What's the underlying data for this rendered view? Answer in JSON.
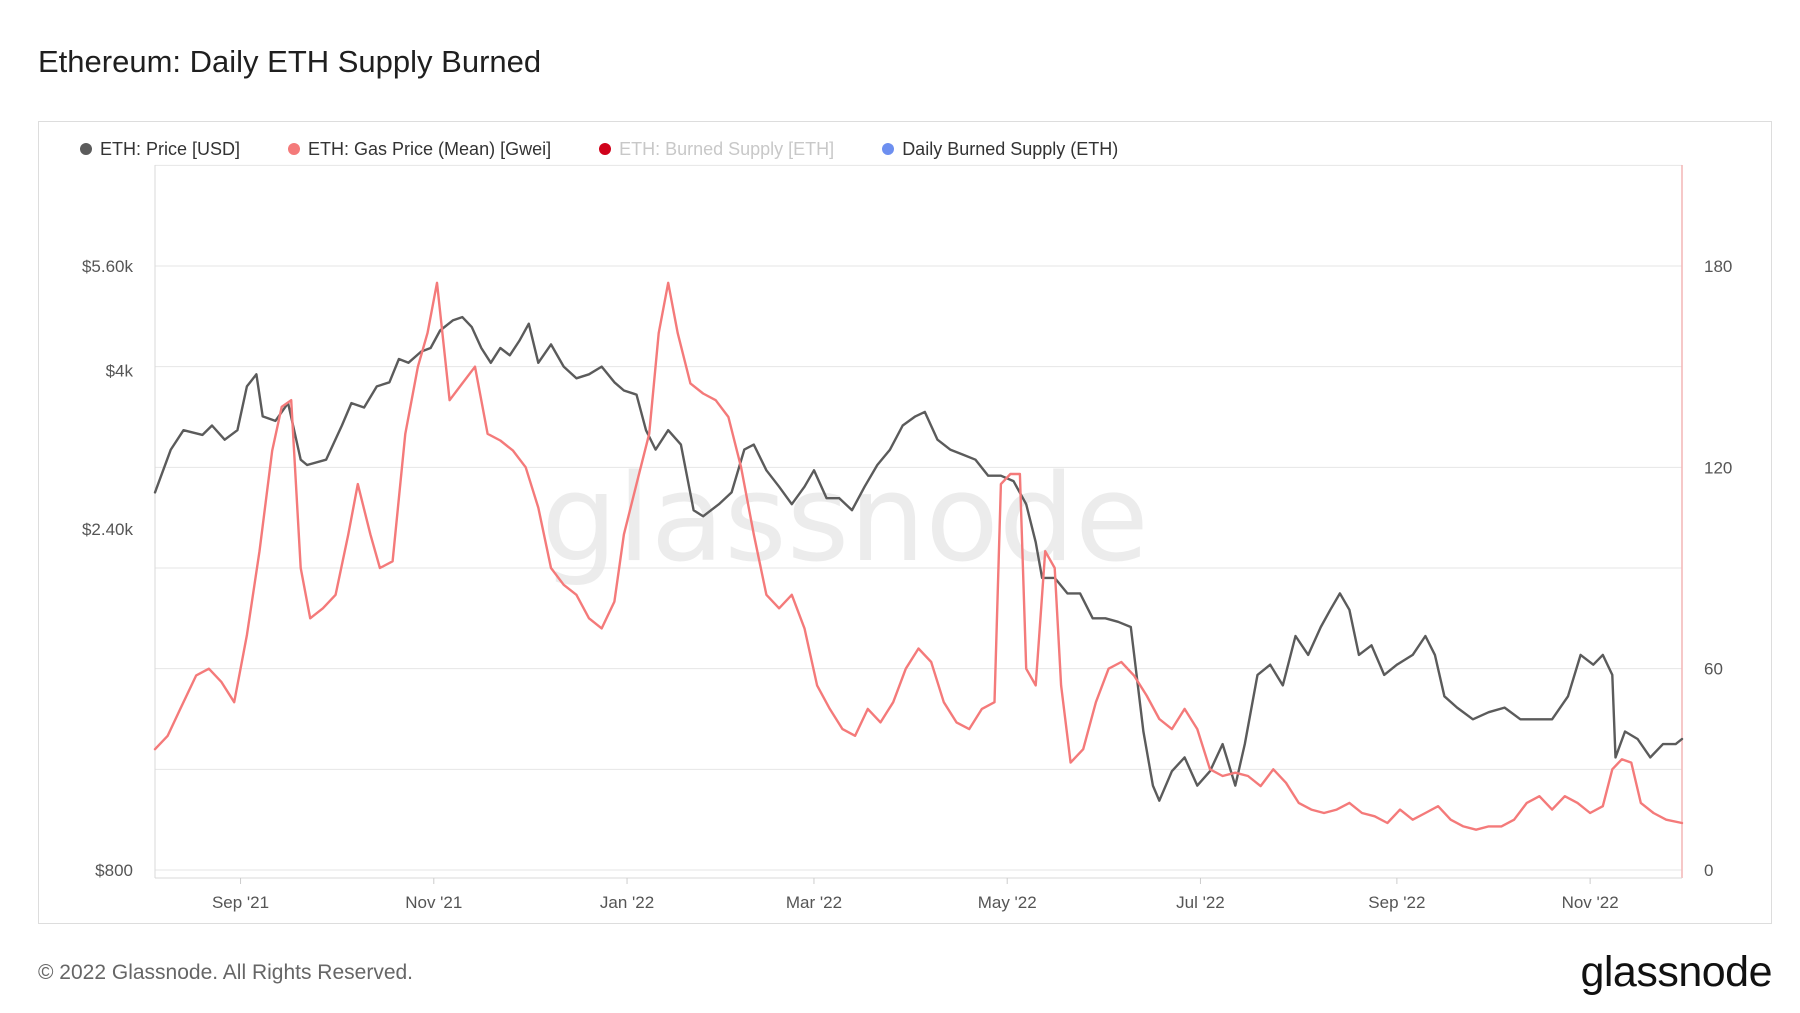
{
  "page": {
    "title": "Ethereum: Daily ETH Supply Burned",
    "footer_copyright": "© 2022 Glassnode. All Rights Reserved.",
    "footer_brand": "glassnode",
    "watermark": "glassnode"
  },
  "chart_data": {
    "type": "line",
    "title": "Ethereum: Daily ETH Supply Burned",
    "x_range": [
      "2021-08-05",
      "2022-11-30"
    ],
    "x_ticks": [
      {
        "date": "2021-09-01",
        "label": "Sep '21"
      },
      {
        "date": "2021-11-01",
        "label": "Nov '21"
      },
      {
        "date": "2022-01-01",
        "label": "Jan '22"
      },
      {
        "date": "2022-03-01",
        "label": "Mar '22"
      },
      {
        "date": "2022-05-01",
        "label": "May '22"
      },
      {
        "date": "2022-07-01",
        "label": "Jul '22"
      },
      {
        "date": "2022-09-01",
        "label": "Sep '22"
      },
      {
        "date": "2022-11-01",
        "label": "Nov '22"
      }
    ],
    "y_left": {
      "scale": "log",
      "range": [
        800,
        8000
      ],
      "ticks": [
        {
          "value": 800,
          "label": "$800"
        },
        {
          "value": 2400,
          "label": "$2.40k"
        },
        {
          "value": 4000,
          "label": "$4k"
        },
        {
          "value": 5600,
          "label": "$5.60k"
        }
      ]
    },
    "y_right": {
      "scale": "linear",
      "range": [
        0,
        210
      ],
      "ticks": [
        {
          "value": 0,
          "label": "0"
        },
        {
          "value": 60,
          "label": "60"
        },
        {
          "value": 120,
          "label": "120"
        },
        {
          "value": 180,
          "label": "180"
        }
      ]
    },
    "grid": true,
    "legend_position": "top-left",
    "series": [
      {
        "name": "ETH: Price [USD]",
        "color": "#5b5b5b",
        "axis": "left",
        "visible": true,
        "points": [
          [
            "2021-08-05",
            2700
          ],
          [
            "2021-08-10",
            3100
          ],
          [
            "2021-08-14",
            3300
          ],
          [
            "2021-08-20",
            3250
          ],
          [
            "2021-08-23",
            3350
          ],
          [
            "2021-08-27",
            3200
          ],
          [
            "2021-08-31",
            3300
          ],
          [
            "2021-09-03",
            3800
          ],
          [
            "2021-09-06",
            3950
          ],
          [
            "2021-09-08",
            3450
          ],
          [
            "2021-09-12",
            3400
          ],
          [
            "2021-09-16",
            3600
          ],
          [
            "2021-09-20",
            3000
          ],
          [
            "2021-09-22",
            2950
          ],
          [
            "2021-09-28",
            3000
          ],
          [
            "2021-10-03",
            3350
          ],
          [
            "2021-10-06",
            3600
          ],
          [
            "2021-10-10",
            3550
          ],
          [
            "2021-10-14",
            3800
          ],
          [
            "2021-10-18",
            3850
          ],
          [
            "2021-10-21",
            4150
          ],
          [
            "2021-10-24",
            4100
          ],
          [
            "2021-10-28",
            4250
          ],
          [
            "2021-10-31",
            4300
          ],
          [
            "2021-11-03",
            4550
          ],
          [
            "2021-11-07",
            4700
          ],
          [
            "2021-11-10",
            4750
          ],
          [
            "2021-11-13",
            4600
          ],
          [
            "2021-11-16",
            4300
          ],
          [
            "2021-11-19",
            4100
          ],
          [
            "2021-11-22",
            4300
          ],
          [
            "2021-11-25",
            4200
          ],
          [
            "2021-11-28",
            4400
          ],
          [
            "2021-12-01",
            4650
          ],
          [
            "2021-12-04",
            4100
          ],
          [
            "2021-12-08",
            4350
          ],
          [
            "2021-12-12",
            4050
          ],
          [
            "2021-12-16",
            3900
          ],
          [
            "2021-12-20",
            3950
          ],
          [
            "2021-12-24",
            4050
          ],
          [
            "2021-12-28",
            3850
          ],
          [
            "2021-12-31",
            3750
          ],
          [
            "2022-01-04",
            3700
          ],
          [
            "2022-01-07",
            3300
          ],
          [
            "2022-01-10",
            3100
          ],
          [
            "2022-01-14",
            3300
          ],
          [
            "2022-01-18",
            3150
          ],
          [
            "2022-01-22",
            2550
          ],
          [
            "2022-01-25",
            2500
          ],
          [
            "2022-01-30",
            2600
          ],
          [
            "2022-02-03",
            2700
          ],
          [
            "2022-02-07",
            3100
          ],
          [
            "2022-02-10",
            3150
          ],
          [
            "2022-02-14",
            2900
          ],
          [
            "2022-02-18",
            2750
          ],
          [
            "2022-02-22",
            2600
          ],
          [
            "2022-02-26",
            2750
          ],
          [
            "2022-03-01",
            2900
          ],
          [
            "2022-03-05",
            2650
          ],
          [
            "2022-03-09",
            2650
          ],
          [
            "2022-03-13",
            2550
          ],
          [
            "2022-03-17",
            2750
          ],
          [
            "2022-03-21",
            2950
          ],
          [
            "2022-03-25",
            3100
          ],
          [
            "2022-03-29",
            3350
          ],
          [
            "2022-04-02",
            3450
          ],
          [
            "2022-04-05",
            3500
          ],
          [
            "2022-04-09",
            3200
          ],
          [
            "2022-04-13",
            3100
          ],
          [
            "2022-04-17",
            3050
          ],
          [
            "2022-04-21",
            3000
          ],
          [
            "2022-04-25",
            2850
          ],
          [
            "2022-04-29",
            2850
          ],
          [
            "2022-05-03",
            2800
          ],
          [
            "2022-05-07",
            2600
          ],
          [
            "2022-05-10",
            2300
          ],
          [
            "2022-05-12",
            2050
          ],
          [
            "2022-05-16",
            2050
          ],
          [
            "2022-05-20",
            1950
          ],
          [
            "2022-05-24",
            1950
          ],
          [
            "2022-05-28",
            1800
          ],
          [
            "2022-06-01",
            1800
          ],
          [
            "2022-06-05",
            1780
          ],
          [
            "2022-06-09",
            1750
          ],
          [
            "2022-06-13",
            1250
          ],
          [
            "2022-06-16",
            1050
          ],
          [
            "2022-06-18",
            1000
          ],
          [
            "2022-06-22",
            1100
          ],
          [
            "2022-06-26",
            1150
          ],
          [
            "2022-06-30",
            1050
          ],
          [
            "2022-07-04",
            1100
          ],
          [
            "2022-07-08",
            1200
          ],
          [
            "2022-07-12",
            1050
          ],
          [
            "2022-07-15",
            1200
          ],
          [
            "2022-07-19",
            1500
          ],
          [
            "2022-07-23",
            1550
          ],
          [
            "2022-07-27",
            1450
          ],
          [
            "2022-07-31",
            1700
          ],
          [
            "2022-08-04",
            1600
          ],
          [
            "2022-08-08",
            1750
          ],
          [
            "2022-08-11",
            1850
          ],
          [
            "2022-08-14",
            1950
          ],
          [
            "2022-08-17",
            1850
          ],
          [
            "2022-08-20",
            1600
          ],
          [
            "2022-08-24",
            1650
          ],
          [
            "2022-08-28",
            1500
          ],
          [
            "2022-09-01",
            1550
          ],
          [
            "2022-09-06",
            1600
          ],
          [
            "2022-09-10",
            1700
          ],
          [
            "2022-09-13",
            1600
          ],
          [
            "2022-09-16",
            1400
          ],
          [
            "2022-09-20",
            1350
          ],
          [
            "2022-09-25",
            1300
          ],
          [
            "2022-09-30",
            1330
          ],
          [
            "2022-10-05",
            1350
          ],
          [
            "2022-10-10",
            1300
          ],
          [
            "2022-10-15",
            1300
          ],
          [
            "2022-10-20",
            1300
          ],
          [
            "2022-10-25",
            1400
          ],
          [
            "2022-10-29",
            1600
          ],
          [
            "2022-11-02",
            1550
          ],
          [
            "2022-11-05",
            1600
          ],
          [
            "2022-11-08",
            1500
          ],
          [
            "2022-11-09",
            1150
          ],
          [
            "2022-11-12",
            1250
          ],
          [
            "2022-11-16",
            1220
          ],
          [
            "2022-11-20",
            1150
          ],
          [
            "2022-11-24",
            1200
          ],
          [
            "2022-11-28",
            1200
          ],
          [
            "2022-11-30",
            1220
          ]
        ]
      },
      {
        "name": "ETH: Gas Price (Mean) [Gwei]",
        "color": "#f47a7a",
        "axis": "right",
        "visible": true,
        "points": [
          [
            "2021-08-05",
            36
          ],
          [
            "2021-08-09",
            40
          ],
          [
            "2021-08-13",
            48
          ],
          [
            "2021-08-18",
            58
          ],
          [
            "2021-08-22",
            60
          ],
          [
            "2021-08-26",
            56
          ],
          [
            "2021-08-30",
            50
          ],
          [
            "2021-09-03",
            70
          ],
          [
            "2021-09-07",
            95
          ],
          [
            "2021-09-11",
            125
          ],
          [
            "2021-09-14",
            138
          ],
          [
            "2021-09-17",
            140
          ],
          [
            "2021-09-20",
            90
          ],
          [
            "2021-09-23",
            75
          ],
          [
            "2021-09-27",
            78
          ],
          [
            "2021-10-01",
            82
          ],
          [
            "2021-10-05",
            100
          ],
          [
            "2021-10-08",
            115
          ],
          [
            "2021-10-12",
            100
          ],
          [
            "2021-10-15",
            90
          ],
          [
            "2021-10-19",
            92
          ],
          [
            "2021-10-23",
            130
          ],
          [
            "2021-10-27",
            150
          ],
          [
            "2021-10-30",
            160
          ],
          [
            "2021-11-02",
            175
          ],
          [
            "2021-11-06",
            140
          ],
          [
            "2021-11-10",
            145
          ],
          [
            "2021-11-14",
            150
          ],
          [
            "2021-11-18",
            130
          ],
          [
            "2021-11-22",
            128
          ],
          [
            "2021-11-26",
            125
          ],
          [
            "2021-11-30",
            120
          ],
          [
            "2021-12-04",
            108
          ],
          [
            "2021-12-08",
            90
          ],
          [
            "2021-12-12",
            85
          ],
          [
            "2021-12-16",
            82
          ],
          [
            "2021-12-20",
            75
          ],
          [
            "2021-12-24",
            72
          ],
          [
            "2021-12-28",
            80
          ],
          [
            "2021-12-31",
            100
          ],
          [
            "2022-01-04",
            115
          ],
          [
            "2022-01-08",
            130
          ],
          [
            "2022-01-11",
            160
          ],
          [
            "2022-01-14",
            175
          ],
          [
            "2022-01-17",
            160
          ],
          [
            "2022-01-21",
            145
          ],
          [
            "2022-01-25",
            142
          ],
          [
            "2022-01-29",
            140
          ],
          [
            "2022-02-02",
            135
          ],
          [
            "2022-02-06",
            120
          ],
          [
            "2022-02-10",
            100
          ],
          [
            "2022-02-14",
            82
          ],
          [
            "2022-02-18",
            78
          ],
          [
            "2022-02-22",
            82
          ],
          [
            "2022-02-26",
            72
          ],
          [
            "2022-03-02",
            55
          ],
          [
            "2022-03-06",
            48
          ],
          [
            "2022-03-10",
            42
          ],
          [
            "2022-03-14",
            40
          ],
          [
            "2022-03-18",
            48
          ],
          [
            "2022-03-22",
            44
          ],
          [
            "2022-03-26",
            50
          ],
          [
            "2022-03-30",
            60
          ],
          [
            "2022-04-03",
            66
          ],
          [
            "2022-04-07",
            62
          ],
          [
            "2022-04-11",
            50
          ],
          [
            "2022-04-15",
            44
          ],
          [
            "2022-04-19",
            42
          ],
          [
            "2022-04-23",
            48
          ],
          [
            "2022-04-27",
            50
          ],
          [
            "2022-04-29",
            115
          ],
          [
            "2022-05-02",
            118
          ],
          [
            "2022-05-05",
            118
          ],
          [
            "2022-05-07",
            60
          ],
          [
            "2022-05-10",
            55
          ],
          [
            "2022-05-13",
            95
          ],
          [
            "2022-05-16",
            90
          ],
          [
            "2022-05-18",
            55
          ],
          [
            "2022-05-21",
            32
          ],
          [
            "2022-05-25",
            36
          ],
          [
            "2022-05-29",
            50
          ],
          [
            "2022-06-02",
            60
          ],
          [
            "2022-06-06",
            62
          ],
          [
            "2022-06-10",
            58
          ],
          [
            "2022-06-14",
            52
          ],
          [
            "2022-06-18",
            45
          ],
          [
            "2022-06-22",
            42
          ],
          [
            "2022-06-26",
            48
          ],
          [
            "2022-06-30",
            42
          ],
          [
            "2022-07-04",
            30
          ],
          [
            "2022-07-08",
            28
          ],
          [
            "2022-07-12",
            29
          ],
          [
            "2022-07-16",
            28
          ],
          [
            "2022-07-20",
            25
          ],
          [
            "2022-07-24",
            30
          ],
          [
            "2022-07-28",
            26
          ],
          [
            "2022-08-01",
            20
          ],
          [
            "2022-08-05",
            18
          ],
          [
            "2022-08-09",
            17
          ],
          [
            "2022-08-13",
            18
          ],
          [
            "2022-08-17",
            20
          ],
          [
            "2022-08-21",
            17
          ],
          [
            "2022-08-25",
            16
          ],
          [
            "2022-08-29",
            14
          ],
          [
            "2022-09-02",
            18
          ],
          [
            "2022-09-06",
            15
          ],
          [
            "2022-09-10",
            17
          ],
          [
            "2022-09-14",
            19
          ],
          [
            "2022-09-18",
            15
          ],
          [
            "2022-09-22",
            13
          ],
          [
            "2022-09-26",
            12
          ],
          [
            "2022-09-30",
            13
          ],
          [
            "2022-10-04",
            13
          ],
          [
            "2022-10-08",
            15
          ],
          [
            "2022-10-12",
            20
          ],
          [
            "2022-10-16",
            22
          ],
          [
            "2022-10-20",
            18
          ],
          [
            "2022-10-24",
            22
          ],
          [
            "2022-10-28",
            20
          ],
          [
            "2022-11-01",
            17
          ],
          [
            "2022-11-05",
            19
          ],
          [
            "2022-11-08",
            30
          ],
          [
            "2022-11-11",
            33
          ],
          [
            "2022-11-14",
            32
          ],
          [
            "2022-11-17",
            20
          ],
          [
            "2022-11-21",
            17
          ],
          [
            "2022-11-25",
            15
          ],
          [
            "2022-11-30",
            14
          ]
        ]
      },
      {
        "name": "ETH: Burned Supply [ETH]",
        "color": "#d0021b",
        "axis": "right",
        "visible": false,
        "points": []
      },
      {
        "name": "Daily Burned Supply (ETH)",
        "color": "#6d8ff0",
        "axis": "right",
        "visible": true,
        "points": []
      }
    ]
  }
}
